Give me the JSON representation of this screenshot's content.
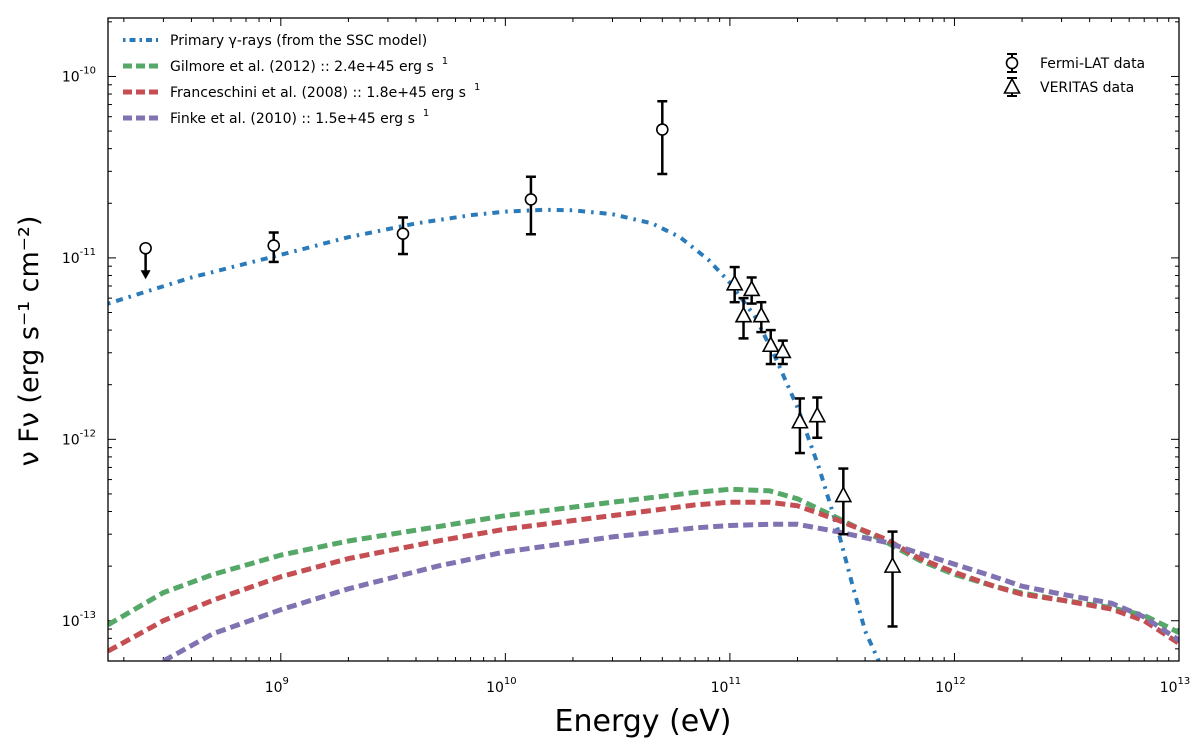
{
  "chart_data": {
    "type": "line",
    "title": "",
    "xlabel": "Energy (eV)",
    "ylabel": "ν Fν (erg s⁻¹ cm⁻²)",
    "xscale": "log",
    "yscale": "log",
    "xlim": [
      170000000.0,
      10000000000000.0
    ],
    "ylim": [
      6e-14,
      2.1e-10
    ],
    "grid": false,
    "legend_position": "top-left",
    "x_tick_labels": [
      {
        "value": 1000000000.0,
        "base": "10",
        "exp": "9"
      },
      {
        "value": 10000000000.0,
        "base": "10",
        "exp": "10"
      },
      {
        "value": 100000000000.0,
        "base": "10",
        "exp": "11"
      },
      {
        "value": 1000000000000.0,
        "base": "10",
        "exp": "12"
      },
      {
        "value": 10000000000000.0,
        "base": "10",
        "exp": "13"
      }
    ],
    "y_tick_labels": [
      {
        "value": 1e-13,
        "base": "10",
        "exp": "-13"
      },
      {
        "value": 1e-12,
        "base": "10",
        "exp": "-12"
      },
      {
        "value": 1e-11,
        "base": "10",
        "exp": "-11"
      },
      {
        "value": 1e-10,
        "base": "10",
        "exp": "-10"
      }
    ],
    "series": [
      {
        "name": "Primary γ-rays (from the SSC model)",
        "style": "dotdash",
        "color": "#2b7bba",
        "x": [
          170000000.0,
          250000000.0,
          400000000.0,
          700000000.0,
          1000000000.0,
          2000000000.0,
          4000000000.0,
          7000000000.0,
          10000000000.0,
          15000000000.0,
          20000000000.0,
          30000000000.0,
          45000000000.0,
          60000000000.0,
          80000000000.0,
          100000000000.0,
          130000000000.0,
          160000000000.0,
          200000000000.0,
          250000000000.0,
          300000000000.0,
          350000000000.0,
          400000000000.0,
          460000000000.0
        ],
        "y": [
          5.6e-12,
          6.5e-12,
          7.8e-12,
          9.3e-12,
          1.04e-11,
          1.3e-11,
          1.55e-11,
          1.72e-11,
          1.8e-11,
          1.84e-11,
          1.83e-11,
          1.74e-11,
          1.55e-11,
          1.3e-11,
          9.8e-12,
          7.3e-12,
          4.7e-12,
          2.8e-12,
          1.5e-12,
          6.9e-13,
          3.3e-13,
          1.6e-13,
          8.8e-14,
          6e-14
        ]
      },
      {
        "name": "Gilmore et al. (2012) :: 2.4e+45 erg s",
        "label_sup": "1",
        "style": "dashed",
        "color": "#55a868",
        "x": [
          170000000.0,
          300000000.0,
          500000000.0,
          1000000000.0,
          2000000000.0,
          5000000000.0,
          10000000000.0,
          30000000000.0,
          70000000000.0,
          100000000000.0,
          150000000000.0,
          200000000000.0,
          300000000000.0,
          500000000000.0,
          700000000000.0,
          1000000000000.0,
          1500000000000.0,
          2000000000000.0,
          3000000000000.0,
          5000000000000.0,
          7000000000000.0,
          10000000000000.0
        ],
        "y": [
          9.5e-14,
          1.43e-13,
          1.8e-13,
          2.3e-13,
          2.75e-13,
          3.3e-13,
          3.8e-13,
          4.5e-13,
          5.1e-13,
          5.3e-13,
          5.2e-13,
          4.7e-13,
          3.7e-13,
          2.7e-13,
          2.15e-13,
          1.8e-13,
          1.55e-13,
          1.42e-13,
          1.3e-13,
          1.18e-13,
          1.07e-13,
          8.6e-14
        ]
      },
      {
        "name": "Franceschini et al. (2008) :: 1.8e+45 erg s",
        "label_sup": "1",
        "style": "dashed",
        "color": "#c44e52",
        "x": [
          170000000.0,
          300000000.0,
          500000000.0,
          1000000000.0,
          2000000000.0,
          5000000000.0,
          10000000000.0,
          30000000000.0,
          70000000000.0,
          100000000000.0,
          150000000000.0,
          200000000000.0,
          300000000000.0,
          500000000000.0,
          700000000000.0,
          1000000000000.0,
          1500000000000.0,
          2000000000000.0,
          3000000000000.0,
          5000000000000.0,
          7000000000000.0,
          10000000000000.0
        ],
        "y": [
          6.8e-14,
          1e-13,
          1.3e-13,
          1.75e-13,
          2.2e-13,
          2.75e-13,
          3.2e-13,
          3.8e-13,
          4.35e-13,
          4.5e-13,
          4.5e-13,
          4.3e-13,
          3.6e-13,
          2.8e-13,
          2.2e-13,
          1.85e-13,
          1.55e-13,
          1.4e-13,
          1.3e-13,
          1.16e-13,
          1e-13,
          7.5e-14
        ]
      },
      {
        "name": "Finke et al. (2010) :: 1.5e+45 erg s",
        "label_sup": "1",
        "style": "dashed",
        "color": "#8172b2",
        "x": [
          300000000.0,
          500000000.0,
          1000000000.0,
          2000000000.0,
          5000000000.0,
          10000000000.0,
          30000000000.0,
          70000000000.0,
          100000000000.0,
          150000000000.0,
          200000000000.0,
          300000000000.0,
          500000000000.0,
          700000000000.0,
          1000000000000.0,
          1500000000000.0,
          2000000000000.0,
          3000000000000.0,
          5000000000000.0,
          7000000000000.0,
          10000000000000.0
        ],
        "y": [
          6e-14,
          8.5e-14,
          1.15e-13,
          1.5e-13,
          2e-13,
          2.4e-13,
          2.9e-13,
          3.25e-13,
          3.35e-13,
          3.4e-13,
          3.4e-13,
          3.1e-13,
          2.7e-13,
          2.35e-13,
          2.05e-13,
          1.75e-13,
          1.55e-13,
          1.4e-13,
          1.25e-13,
          1.05e-13,
          7.8e-14
        ]
      }
    ],
    "markers": [
      {
        "name": "Fermi-LAT data",
        "shape": "circle",
        "points": [
          {
            "x": 250000000.0,
            "y": 1.13e-11,
            "upper_limit": true
          },
          {
            "x": 930000000.0,
            "y": 1.17e-11,
            "ylo": 9.5e-12,
            "yhi": 1.38e-11
          },
          {
            "x": 3500000000.0,
            "y": 1.36e-11,
            "ylo": 1.05e-11,
            "yhi": 1.67e-11
          },
          {
            "x": 13000000000.0,
            "y": 2.1e-11,
            "ylo": 1.35e-11,
            "yhi": 2.8e-11
          },
          {
            "x": 50000000000.0,
            "y": 5.1e-11,
            "ylo": 2.9e-11,
            "yhi": 7.3e-11
          }
        ]
      },
      {
        "name": "VERITAS data",
        "shape": "triangle",
        "points": [
          {
            "x": 105000000000.0,
            "y": 7.2e-12,
            "ylo": 5.7e-12,
            "yhi": 8.9e-12
          },
          {
            "x": 115000000000.0,
            "y": 4.8e-12,
            "ylo": 3.6e-12,
            "yhi": 6e-12
          },
          {
            "x": 125000000000.0,
            "y": 6.7e-12,
            "ylo": 5.6e-12,
            "yhi": 7.8e-12
          },
          {
            "x": 138000000000.0,
            "y": 4.8e-12,
            "ylo": 3.9e-12,
            "yhi": 5.7e-12
          },
          {
            "x": 152000000000.0,
            "y": 3.3e-12,
            "ylo": 2.6e-12,
            "yhi": 4e-12
          },
          {
            "x": 172000000000.0,
            "y": 3.05e-12,
            "ylo": 2.6e-12,
            "yhi": 3.5e-12
          },
          {
            "x": 205000000000.0,
            "y": 1.25e-12,
            "ylo": 8.4e-13,
            "yhi": 1.68e-12
          },
          {
            "x": 245000000000.0,
            "y": 1.35e-12,
            "ylo": 1.02e-12,
            "yhi": 1.7e-12
          },
          {
            "x": 320000000000.0,
            "y": 4.9e-13,
            "ylo": 3e-13,
            "yhi": 6.9e-13
          },
          {
            "x": 530000000000.0,
            "y": 2e-13,
            "ylo": 9.3e-14,
            "yhi": 3.1e-13
          }
        ]
      }
    ]
  }
}
